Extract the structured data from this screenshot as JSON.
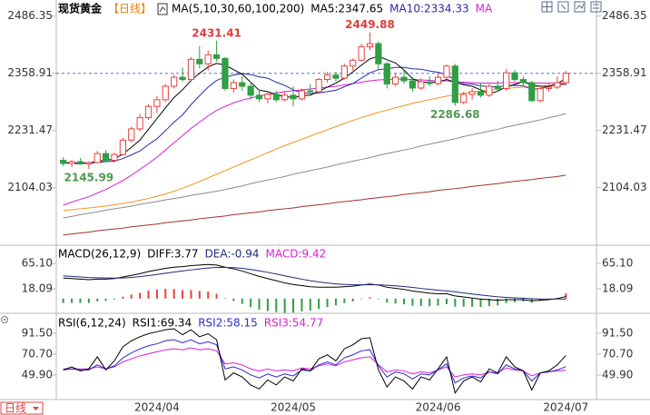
{
  "chart_data": [
    {
      "type": "candlestick",
      "title": "现货黄金",
      "subtitle": "【日线】",
      "indicator": "MA(5,10,30,60,100,200)",
      "period_button": "日线",
      "categories": [
        null,
        null,
        null,
        null,
        null,
        null,
        null,
        null,
        null,
        null,
        null,
        "2024/04",
        null,
        null,
        null,
        null,
        null,
        null,
        null,
        null,
        null,
        null,
        null,
        null,
        null,
        null,
        null,
        "2024/05",
        null,
        null,
        null,
        null,
        null,
        null,
        null,
        null,
        null,
        null,
        null,
        null,
        null,
        null,
        null,
        null,
        "2024/06",
        null,
        null,
        null,
        null,
        null,
        null,
        null,
        null,
        null,
        null,
        null,
        null,
        null,
        null,
        "2024/07"
      ],
      "open": [
        2165,
        2158,
        2162,
        2157,
        2160,
        2180,
        2165,
        2178,
        2210,
        2235,
        2260,
        2285,
        2300,
        2330,
        2350,
        2345,
        2390,
        2380,
        2400,
        2392,
        2325,
        2338,
        2330,
        2310,
        2302,
        2312,
        2300,
        2310,
        2302,
        2320,
        2318,
        2345,
        2355,
        2348,
        2375,
        2388,
        2418,
        2425,
        2380,
        2335,
        2350,
        2342,
        2326,
        2340,
        2336,
        2350,
        2375,
        2294,
        2312,
        2318,
        2310,
        2330,
        2325,
        2360,
        2345,
        2338,
        2298,
        2325,
        2328,
        2338
      ],
      "high": [
        2172,
        2166,
        2170,
        2163,
        2186,
        2188,
        2182,
        2215,
        2240,
        2268,
        2290,
        2308,
        2335,
        2356,
        2372,
        2395,
        2420,
        2410,
        2431.41,
        2395,
        2345,
        2352,
        2340,
        2322,
        2318,
        2320,
        2318,
        2330,
        2325,
        2335,
        2348,
        2362,
        2362,
        2380,
        2392,
        2425,
        2449.88,
        2430,
        2385,
        2358,
        2365,
        2350,
        2348,
        2352,
        2360,
        2378,
        2380,
        2318,
        2326,
        2336,
        2335,
        2342,
        2368,
        2366,
        2352,
        2342,
        2330,
        2336,
        2352,
        2364
      ],
      "low": [
        2152,
        2150,
        2155,
        2145.99,
        2158,
        2162,
        2160,
        2175,
        2205,
        2230,
        2255,
        2270,
        2295,
        2325,
        2340,
        2340,
        2370,
        2365,
        2385,
        2320,
        2315,
        2320,
        2300,
        2295,
        2292,
        2295,
        2296,
        2285,
        2298,
        2312,
        2315,
        2338,
        2340,
        2345,
        2365,
        2385,
        2410,
        2365,
        2325,
        2330,
        2335,
        2318,
        2322,
        2330,
        2332,
        2345,
        2286.68,
        2290,
        2300,
        2305,
        2306,
        2318,
        2320,
        2340,
        2330,
        2295,
        2294,
        2318,
        2324,
        2332
      ],
      "close": [
        2158,
        2162,
        2157,
        2160,
        2180,
        2165,
        2178,
        2210,
        2235,
        2260,
        2285,
        2300,
        2330,
        2350,
        2345,
        2390,
        2380,
        2400,
        2392,
        2325,
        2338,
        2330,
        2310,
        2302,
        2312,
        2300,
        2310,
        2302,
        2320,
        2318,
        2345,
        2355,
        2348,
        2375,
        2388,
        2418,
        2425,
        2380,
        2335,
        2350,
        2342,
        2326,
        2340,
        2336,
        2350,
        2375,
        2294,
        2312,
        2318,
        2310,
        2330,
        2325,
        2360,
        2345,
        2338,
        2298,
        2325,
        2328,
        2338,
        2358.91
      ],
      "up_color": "#e8413b",
      "down_color": "#2f9e44",
      "series": [
        {
          "name": "MA5:2347.65",
          "color": "#000000",
          "values": [
            2160,
            2158,
            2158,
            2159,
            2163,
            2165,
            2168,
            2179,
            2194,
            2210,
            2234,
            2258,
            2282,
            2305,
            2322,
            2343,
            2359,
            2373,
            2381,
            2377,
            2367,
            2357,
            2339,
            2321,
            2318,
            2311,
            2307,
            2305,
            2309,
            2310,
            2319,
            2328,
            2337,
            2348,
            2362,
            2377,
            2391,
            2397,
            2389,
            2382,
            2366,
            2347,
            2339,
            2339,
            2339,
            2345,
            2339,
            2333,
            2330,
            2322,
            2313,
            2319,
            2329,
            2334,
            2340,
            2333,
            2330,
            2330,
            2336,
            2347.65
          ]
        },
        {
          "name": "MA10:2334.33",
          "color": "#2a2aa8",
          "values": [
            2160,
            2159,
            2159,
            2159,
            2160,
            2162,
            2163,
            2169,
            2177,
            2186,
            2200,
            2213,
            2231,
            2250,
            2266,
            2289,
            2309,
            2328,
            2343,
            2350,
            2355,
            2358,
            2356,
            2351,
            2348,
            2339,
            2332,
            2322,
            2315,
            2314,
            2315,
            2318,
            2321,
            2329,
            2336,
            2348,
            2360,
            2367,
            2369,
            2372,
            2372,
            2369,
            2368,
            2364,
            2361,
            2356,
            2343,
            2336,
            2335,
            2331,
            2329,
            2329,
            2331,
            2332,
            2331,
            2323,
            2325,
            2330,
            2335,
            2334.33
          ]
        },
        {
          "name": "MA",
          "color": "#d81ed8",
          "values": [
            2065,
            2072,
            2078,
            2084,
            2092,
            2100,
            2110,
            2120,
            2132,
            2145,
            2158,
            2172,
            2188,
            2204,
            2220,
            2236,
            2250,
            2264,
            2276,
            2285,
            2293,
            2299,
            2304,
            2308,
            2312,
            2315,
            2318,
            2320,
            2322,
            2324,
            2326,
            2328,
            2330,
            2333,
            2336,
            2339,
            2342,
            2344,
            2345,
            2346,
            2346,
            2345,
            2344,
            2343,
            2342,
            2342,
            2340,
            2339,
            2338,
            2337,
            2337,
            2337,
            2338,
            2338,
            2338,
            2337,
            2337,
            2337,
            2337,
            2338
          ]
        },
        {
          "color": "#f0961e",
          "values": [
            2053,
            2055,
            2057,
            2059,
            2061,
            2063,
            2066,
            2069,
            2072,
            2076,
            2080,
            2085,
            2090,
            2096,
            2103,
            2110,
            2118,
            2126,
            2134,
            2142,
            2150,
            2158,
            2166,
            2174,
            2182,
            2190,
            2198,
            2205,
            2212,
            2219,
            2226,
            2233,
            2240,
            2247,
            2254,
            2260,
            2266,
            2272,
            2277,
            2282,
            2287,
            2292,
            2296,
            2300,
            2304,
            2308,
            2311,
            2314,
            2317,
            2319,
            2321,
            2323,
            2325,
            2327,
            2328,
            2329,
            2330,
            2331,
            2332,
            2334
          ]
        },
        {
          "color": "#8c8c8c",
          "values": [
            2037,
            2040,
            2044,
            2047,
            2050,
            2054,
            2057,
            2060,
            2063,
            2067,
            2070,
            2073,
            2077,
            2080,
            2083,
            2087,
            2090,
            2093,
            2096,
            2100,
            2104,
            2108,
            2113,
            2117,
            2121,
            2125,
            2129,
            2134,
            2138,
            2142,
            2146,
            2150,
            2155,
            2159,
            2163,
            2167,
            2171,
            2176,
            2180,
            2184,
            2188,
            2192,
            2197,
            2201,
            2205,
            2209,
            2213,
            2218,
            2222,
            2226,
            2230,
            2234,
            2239,
            2243,
            2247,
            2251,
            2255,
            2260,
            2264,
            2269
          ]
        },
        {
          "color": "#a0322d",
          "values": [
            1999,
            2001,
            2003,
            2005,
            2008,
            2010,
            2012,
            2014,
            2017,
            2019,
            2021,
            2023,
            2026,
            2028,
            2030,
            2032,
            2035,
            2037,
            2039,
            2041,
            2044,
            2046,
            2048,
            2050,
            2053,
            2055,
            2057,
            2059,
            2062,
            2064,
            2066,
            2068,
            2071,
            2073,
            2075,
            2077,
            2080,
            2082,
            2084,
            2086,
            2089,
            2091,
            2093,
            2095,
            2098,
            2100,
            2102,
            2104,
            2107,
            2109,
            2111,
            2113,
            2116,
            2118,
            2120,
            2122,
            2125,
            2127,
            2129,
            2132
          ]
        }
      ],
      "current_price": 2358.91,
      "current_price_color": "#3b7dd8",
      "high_labels": [
        2431.41,
        2449.88
      ],
      "low_labels": [
        2145.99,
        2286.68
      ],
      "high_label_color": "#e03c3c",
      "low_label_color": "#4f9a4f",
      "ylim": [
        1980,
        2510
      ],
      "yticks": [
        2104.03,
        2231.47,
        2358.91,
        2486.35
      ]
    },
    {
      "type": "macd",
      "title": "MACD(26,12,9)",
      "series": [
        {
          "name": "DIFF:3.77",
          "color": "#000000",
          "values": [
            38,
            37,
            36,
            35,
            36,
            36,
            37,
            40,
            43,
            46,
            50,
            53,
            56,
            58,
            59,
            61,
            62,
            63,
            62,
            58,
            55,
            51,
            46,
            41,
            37,
            33,
            29,
            26,
            24,
            22,
            21,
            21,
            21,
            22,
            23,
            25,
            27,
            25,
            21,
            19,
            17,
            14,
            12,
            10,
            9,
            9,
            5,
            3,
            1,
            -1,
            -2,
            -3,
            -2,
            -2,
            -2,
            -4,
            -3,
            -2,
            0,
            3.77
          ]
        },
        {
          "name": "DEA:-0.94",
          "color": "#1f2a7a",
          "values": [
            42,
            41,
            40,
            39,
            38.5,
            38,
            37.8,
            38.2,
            39.2,
            40.6,
            42.5,
            44.6,
            46.9,
            49.1,
            51.1,
            53.1,
            54.9,
            56.5,
            57.6,
            57.7,
            57.2,
            55.9,
            53.9,
            51.3,
            48.5,
            45.4,
            42.1,
            38.9,
            35.9,
            33.1,
            30.7,
            28.8,
            27.2,
            26.2,
            25.6,
            25.5,
            25.8,
            25.6,
            24.7,
            23.6,
            22.3,
            20.6,
            18.9,
            17.1,
            15.5,
            14.2,
            12.4,
            10.5,
            8.6,
            6.7,
            4.9,
            3.3,
            2.2,
            1.4,
            0.7,
            -0.2,
            -0.8,
            -1.0,
            -0.8,
            -0.94
          ]
        },
        {
          "name": "MACD:9.42",
          "color": "#d81ed8",
          "bar": true,
          "up_color": "#e8413b",
          "down_color": "#2f9e44",
          "values": [
            -8,
            -8,
            -8,
            -8,
            -5,
            -4,
            -1.6,
            3.6,
            7.6,
            10.8,
            15,
            16.8,
            18.2,
            17.8,
            15.8,
            15.8,
            14.2,
            13,
            8.8,
            0.6,
            -4.4,
            -9.8,
            -15.8,
            -20.6,
            -23,
            -24.8,
            -26.2,
            -25.8,
            -23.8,
            -22.2,
            -19.4,
            -15.6,
            -12.4,
            -8.4,
            -5.2,
            -1,
            2.4,
            -1.2,
            -7.4,
            -9.2,
            -10.6,
            -13.2,
            -13.8,
            -14.2,
            -13,
            -10.4,
            -14.8,
            -15,
            -15.2,
            -15.4,
            -13.8,
            -12.6,
            -8.4,
            -6.8,
            -5.4,
            -7.6,
            -4.4,
            -2,
            1.6,
            9.42
          ]
        }
      ],
      "ylim": [
        -28,
        88
      ],
      "yticks": [
        {
          "value": 18.09,
          "label": "18.09"
        },
        {
          "value": 65.1,
          "label": "65.10"
        }
      ]
    },
    {
      "type": "line",
      "title": "RSI(6,12,24)",
      "series": [
        {
          "name": "RSI1:69.34",
          "color": "#000000",
          "values": [
            55,
            58,
            54,
            56,
            68,
            55,
            64,
            78,
            84,
            88,
            91,
            93,
            95,
            96,
            90,
            95,
            88,
            91,
            85,
            45,
            52,
            48,
            40,
            36,
            45,
            40,
            48,
            44,
            56,
            54,
            66,
            70,
            64,
            76,
            80,
            86,
            87,
            55,
            38,
            48,
            44,
            36,
            48,
            45,
            56,
            68,
            32,
            44,
            48,
            43,
            56,
            52,
            68,
            58,
            54,
            35,
            52,
            54,
            60,
            69.34
          ]
        },
        {
          "name": "RSI2:58.15",
          "color": "#2a2ad0",
          "values": [
            55,
            56,
            55,
            55,
            60,
            56,
            59,
            67,
            72,
            76,
            79,
            81,
            84,
            85,
            82,
            85,
            81,
            83,
            80,
            56,
            58,
            55,
            50,
            47,
            51,
            48,
            51,
            49,
            55,
            54,
            60,
            63,
            60,
            67,
            70,
            74,
            75,
            59,
            48,
            53,
            51,
            46,
            51,
            50,
            55,
            61,
            42,
            47,
            49,
            47,
            53,
            51,
            60,
            56,
            54,
            44,
            52,
            53,
            55,
            58.15
          ]
        },
        {
          "name": "RSI3:54.77",
          "color": "#d81ed8",
          "values": [
            56,
            56,
            56,
            56,
            58,
            56,
            58,
            63,
            66,
            69,
            71,
            73,
            75,
            76,
            75,
            77,
            75,
            76,
            74,
            61,
            62,
            60,
            56,
            54,
            56,
            54,
            55,
            54,
            57,
            56,
            59,
            61,
            59,
            63,
            65,
            67,
            68,
            60,
            53,
            55,
            54,
            51,
            53,
            52,
            55,
            58,
            48,
            50,
            51,
            50,
            53,
            52,
            57,
            55,
            54,
            49,
            52,
            53,
            54,
            54.77
          ]
        }
      ],
      "ylim": [
        25,
        109
      ],
      "yticks": [
        {
          "value": 49.9,
          "label": "49.90"
        },
        {
          "value": 70.7,
          "label": "70.70"
        },
        {
          "value": 91.5,
          "label": "91.50"
        }
      ]
    }
  ]
}
